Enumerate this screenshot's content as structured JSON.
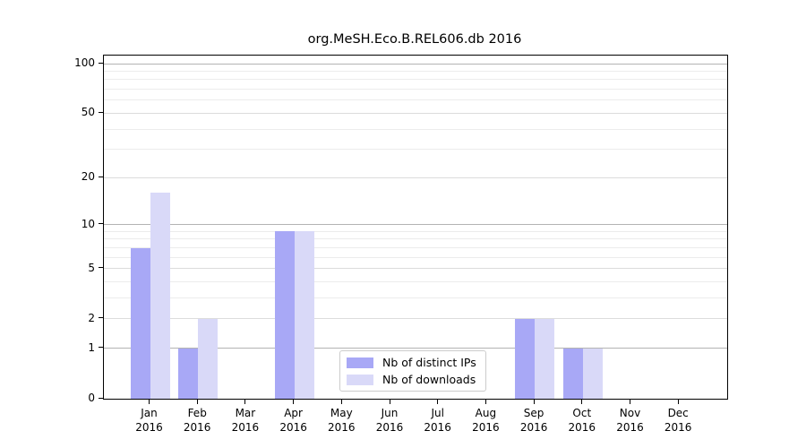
{
  "title": "org.MeSH.Eco.B.REL606.db 2016",
  "colors": {
    "grid_decade": "#b3b3b3",
    "grid_labeled": "#dcdcdc",
    "grid_minor": "#ececec",
    "axis": "#000000",
    "background": "#ffffff"
  },
  "legend": {
    "items": [
      {
        "key": "distinct_ips",
        "label": "Nb of distinct IPs",
        "color": "#a8a8f6"
      },
      {
        "key": "downloads",
        "label": "Nb of downloads",
        "color": "#d9d9f8"
      }
    ]
  },
  "chart_data": {
    "type": "bar",
    "title": "org.MeSH.Eco.B.REL606.db 2016",
    "categories": [
      "Jan 2016",
      "Feb 2016",
      "Mar 2016",
      "Apr 2016",
      "May 2016",
      "Jun 2016",
      "Jul 2016",
      "Aug 2016",
      "Sep 2016",
      "Oct 2016",
      "Nov 2016",
      "Dec 2016"
    ],
    "series": [
      {
        "name": "Nb of distinct IPs",
        "color": "#a8a8f6",
        "values": [
          7,
          1,
          0,
          9,
          0,
          0,
          0,
          0,
          2,
          1,
          0,
          0
        ]
      },
      {
        "name": "Nb of downloads",
        "color": "#d9d9f8",
        "values": [
          16,
          2,
          0,
          9,
          0,
          0,
          0,
          0,
          2,
          1,
          0,
          0
        ]
      }
    ],
    "xlabel": "",
    "ylabel": "",
    "yscale": "log1p",
    "ylim": [
      0,
      112
    ],
    "yticks": [
      0,
      1,
      2,
      5,
      10,
      20,
      50,
      100
    ],
    "grid_decade_lines": [
      1,
      10,
      100
    ],
    "grid_other_lines": [
      2,
      3,
      4,
      5,
      6,
      7,
      8,
      9,
      20,
      30,
      40,
      50,
      60,
      70,
      80,
      90
    ],
    "grid": "on",
    "legend_position": "lower center"
  }
}
